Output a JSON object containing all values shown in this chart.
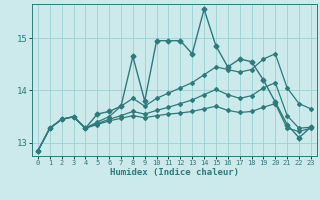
{
  "xlabel": "Humidex (Indice chaleur)",
  "ylabel": "",
  "background_color": "#cce9eb",
  "grid_color": "#99d0d4",
  "line_color": "#2d7b7b",
  "xlim": [
    -0.5,
    23.5
  ],
  "ylim": [
    12.75,
    15.65
  ],
  "yticks": [
    13,
    14,
    15
  ],
  "xticks": [
    0,
    1,
    2,
    3,
    4,
    5,
    6,
    7,
    8,
    9,
    10,
    11,
    12,
    13,
    14,
    15,
    16,
    17,
    18,
    19,
    20,
    21,
    22,
    23
  ],
  "series": [
    {
      "x": [
        0,
        1,
        2,
        3,
        4,
        5,
        6,
        7,
        8,
        9,
        10,
        11,
        12,
        13,
        14,
        15,
        16,
        17,
        18,
        19,
        20,
        21,
        22,
        23
      ],
      "y": [
        12.85,
        13.28,
        13.45,
        13.5,
        13.28,
        13.55,
        13.6,
        13.7,
        14.65,
        13.8,
        14.95,
        14.95,
        14.95,
        14.7,
        15.55,
        14.85,
        14.45,
        14.6,
        14.55,
        14.2,
        13.78,
        13.35,
        13.1,
        13.3
      ],
      "marker": "D",
      "markersize": 2.5,
      "linewidth": 1.0
    },
    {
      "x": [
        0,
        1,
        2,
        3,
        4,
        5,
        6,
        7,
        8,
        9,
        10,
        11,
        12,
        13,
        14,
        15,
        16,
        17,
        18,
        19,
        20,
        21,
        22,
        23
      ],
      "y": [
        12.85,
        13.28,
        13.45,
        13.5,
        13.28,
        13.4,
        13.5,
        13.7,
        13.85,
        13.7,
        13.85,
        13.95,
        14.05,
        14.15,
        14.3,
        14.45,
        14.4,
        14.35,
        14.4,
        14.6,
        14.7,
        14.05,
        13.75,
        13.65
      ],
      "marker": "D",
      "markersize": 2.0,
      "linewidth": 0.9
    },
    {
      "x": [
        0,
        1,
        2,
        3,
        4,
        5,
        6,
        7,
        8,
        9,
        10,
        11,
        12,
        13,
        14,
        15,
        16,
        17,
        18,
        19,
        20,
        21,
        22,
        23
      ],
      "y": [
        12.85,
        13.28,
        13.45,
        13.5,
        13.28,
        13.37,
        13.45,
        13.52,
        13.6,
        13.55,
        13.62,
        13.68,
        13.75,
        13.82,
        13.92,
        14.02,
        13.92,
        13.85,
        13.9,
        14.05,
        14.15,
        13.52,
        13.28,
        13.3
      ],
      "marker": "D",
      "markersize": 2.0,
      "linewidth": 0.9
    },
    {
      "x": [
        0,
        1,
        2,
        3,
        4,
        5,
        6,
        7,
        8,
        9,
        10,
        11,
        12,
        13,
        14,
        15,
        16,
        17,
        18,
        19,
        20,
        21,
        22,
        23
      ],
      "y": [
        12.85,
        13.28,
        13.45,
        13.5,
        13.28,
        13.35,
        13.42,
        13.47,
        13.52,
        13.48,
        13.52,
        13.55,
        13.57,
        13.6,
        13.65,
        13.7,
        13.62,
        13.58,
        13.6,
        13.68,
        13.75,
        13.28,
        13.22,
        13.28
      ],
      "marker": "D",
      "markersize": 2.0,
      "linewidth": 0.9
    }
  ]
}
